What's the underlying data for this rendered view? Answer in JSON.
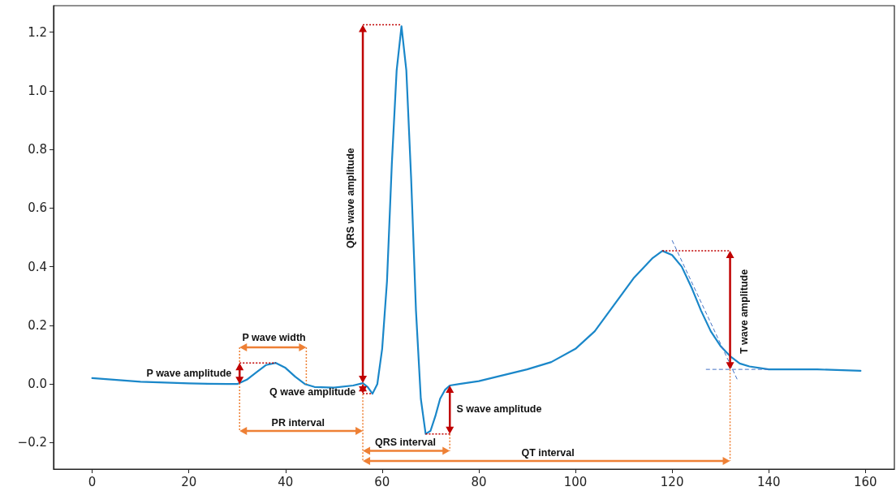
{
  "chart_data": {
    "type": "line",
    "x": [
      0,
      10,
      20,
      28,
      30,
      32,
      34,
      36,
      38,
      40,
      42,
      44,
      46,
      50,
      54,
      56,
      57,
      58,
      59,
      60,
      61,
      62,
      63,
      64,
      65,
      66,
      67,
      68,
      69,
      70,
      71,
      72,
      73,
      74,
      76,
      80,
      90,
      95,
      100,
      104,
      108,
      112,
      116,
      118,
      120,
      122,
      124,
      126,
      128,
      130,
      132,
      134,
      136,
      140,
      150,
      159
    ],
    "series": [
      {
        "color": "#1a87c9",
        "values": [
          0.02,
          0.008,
          0.002,
          0.0,
          0.0,
          0.015,
          0.04,
          0.065,
          0.072,
          0.055,
          0.025,
          0.0,
          -0.01,
          -0.012,
          -0.005,
          0.003,
          -0.01,
          -0.033,
          0.0,
          0.12,
          0.35,
          0.75,
          1.07,
          1.22,
          1.07,
          0.7,
          0.25,
          -0.05,
          -0.17,
          -0.16,
          -0.11,
          -0.05,
          -0.02,
          -0.005,
          0.0,
          0.01,
          0.05,
          0.075,
          0.12,
          0.18,
          0.27,
          0.36,
          0.43,
          0.454,
          0.44,
          0.4,
          0.33,
          0.25,
          0.18,
          0.13,
          0.095,
          0.07,
          0.06,
          0.05,
          0.05,
          0.045
        ]
      }
    ],
    "xlim": [
      -8,
      166
    ],
    "xticks": [
      0,
      20,
      40,
      60,
      80,
      100,
      120,
      140,
      160
    ],
    "ylim": [
      -0.29,
      1.29
    ],
    "yticks": [
      {
        "value": -0.2,
        "label": "−0.2"
      },
      {
        "value": 0,
        "label": "0.0"
      },
      {
        "value": 0.2,
        "label": "0.2"
      },
      {
        "value": 0.4,
        "label": "0.4"
      },
      {
        "value": 0.6,
        "label": "0.6"
      },
      {
        "value": 0.8,
        "label": "0.8"
      },
      {
        "value": 1.0,
        "label": "1.0"
      },
      {
        "value": 1.2,
        "label": "1.2"
      }
    ],
    "marker": "none",
    "line_style": "solid",
    "annotations": [
      {
        "text": "P wave width",
        "x": 44,
        "y": 0.0
      },
      {
        "text": "P wave amplitude",
        "x": 38,
        "y": 0.072
      },
      "Q wave amplitude",
      "PR interval",
      "QRS wave amplitude",
      "S wave amplitude",
      "QRS interval",
      "QT interval",
      "T wave amplitude"
    ]
  }
}
